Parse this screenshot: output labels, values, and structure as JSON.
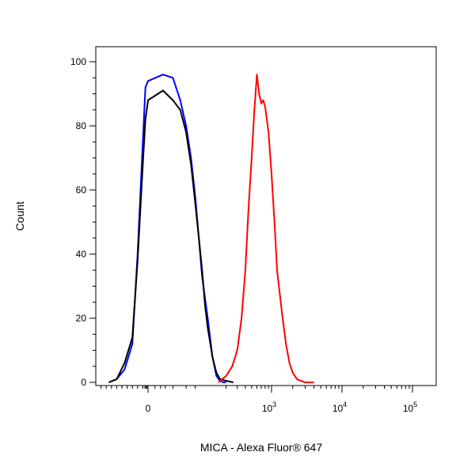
{
  "chart_data": {
    "type": "line",
    "title": "",
    "xlabel": "MICA - Alexa Fluor® 647",
    "ylabel": "Count",
    "ylim": [
      0,
      105
    ],
    "x_scale": "biexponential",
    "xlim": [
      -200,
      180000
    ],
    "grid": false,
    "legend": "none",
    "y_ticks": [
      {
        "value": 0,
        "label": "0"
      },
      {
        "value": 20,
        "label": "20"
      },
      {
        "value": 40,
        "label": "40"
      },
      {
        "value": 60,
        "label": "60"
      },
      {
        "value": 80,
        "label": "80"
      },
      {
        "value": 100,
        "label": "100"
      }
    ],
    "x_ticks": [
      {
        "value": 0,
        "base": "0",
        "exp": ""
      },
      {
        "value": 1000,
        "base": "10",
        "exp": "3"
      },
      {
        "value": 10000,
        "base": "10",
        "exp": "4"
      },
      {
        "value": 100000,
        "base": "10",
        "exp": "5"
      }
    ],
    "series": [
      {
        "color": "#0000ff",
        "x": [
          -150,
          -120,
          -90,
          -60,
          -40,
          -20,
          -10,
          0,
          10,
          20,
          30,
          40,
          50,
          60,
          70,
          80,
          100,
          120,
          140,
          160,
          180,
          200
        ],
        "y": [
          0,
          1,
          4,
          12,
          40,
          75,
          92,
          94,
          96,
          95,
          88,
          80,
          70,
          58,
          45,
          33,
          20,
          8,
          2,
          0.5,
          0,
          0
        ]
      },
      {
        "color": "#000000",
        "x": [
          -150,
          -120,
          -90,
          -60,
          -40,
          -20,
          -10,
          0,
          10,
          20,
          30,
          40,
          50,
          60,
          70,
          80,
          90,
          100,
          120,
          140,
          160,
          200,
          260
        ],
        "y": [
          0,
          1,
          6,
          14,
          38,
          68,
          82,
          88,
          91,
          88,
          85,
          78,
          68,
          56,
          45,
          35,
          24,
          17,
          8,
          3,
          1,
          0.5,
          0
        ]
      },
      {
        "color": "#ff0000",
        "x": [
          150,
          200,
          250,
          300,
          350,
          400,
          450,
          500,
          550,
          600,
          650,
          700,
          750,
          800,
          900,
          1000,
          1100,
          1200,
          1400,
          1600,
          1800,
          2000,
          2300,
          2600,
          3000,
          4000
        ],
        "y": [
          0,
          2,
          5,
          10,
          20,
          35,
          55,
          70,
          85,
          96,
          90,
          87,
          88,
          86,
          78,
          65,
          50,
          35,
          22,
          12,
          6,
          3,
          1,
          0.5,
          0,
          0
        ]
      }
    ]
  }
}
